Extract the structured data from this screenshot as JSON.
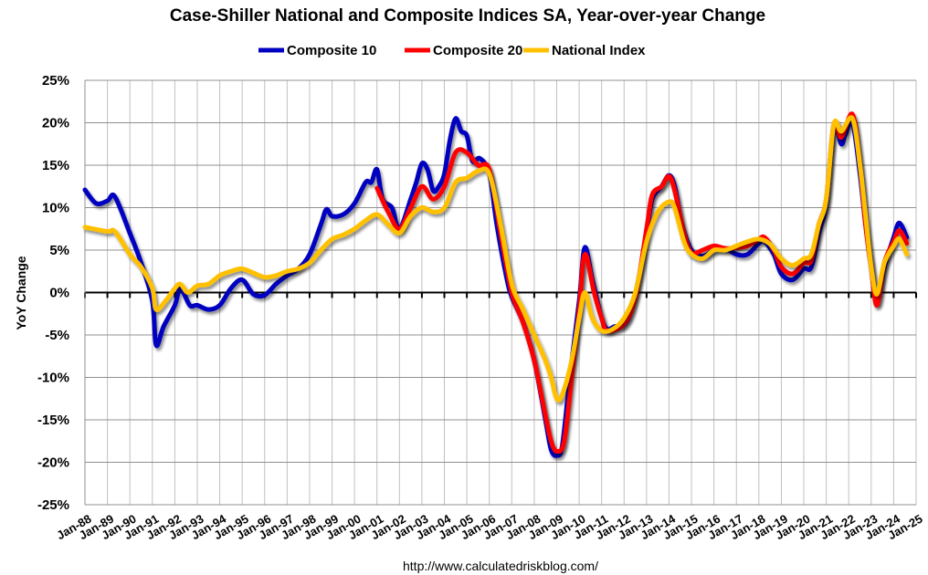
{
  "chart_data": {
    "type": "line",
    "title": "Case-Shiller National and Composite Indices SA, Year-over-year Change",
    "ylabel": "YoY Change",
    "xlabel": "",
    "ylim": [
      -25,
      25
    ],
    "y_ticks": [
      "25%",
      "20%",
      "15%",
      "10%",
      "5%",
      "0%",
      "-5%",
      "-10%",
      "-15%",
      "-20%",
      "-25%"
    ],
    "x_ticks": [
      "Jan-88",
      "Jan-89",
      "Jan-90",
      "Jan-91",
      "Jan-92",
      "Jan-93",
      "Jan-94",
      "Jan-95",
      "Jan-96",
      "Jan-97",
      "Jan-98",
      "Jan-99",
      "Jan-00",
      "Jan-01",
      "Jan-02",
      "Jan-03",
      "Jan-04",
      "Jan-05",
      "Jan-06",
      "Jan-07",
      "Jan-08",
      "Jan-09",
      "Jan-10",
      "Jan-11",
      "Jan-12",
      "Jan-13",
      "Jan-14",
      "Jan-15",
      "Jan-16",
      "Jan-17",
      "Jan-18",
      "Jan-19",
      "Jan-20",
      "Jan-21",
      "Jan-22",
      "Jan-23",
      "Jan-24",
      "Jan-25"
    ],
    "xlim": [
      "1988-01",
      "2025-01"
    ],
    "grid": true,
    "legend_position": "top",
    "series": [
      {
        "name": "Composite 10",
        "color": "#0000C0",
        "points": [
          [
            "1988-01",
            12.1
          ],
          [
            "1988-07",
            10.5
          ],
          [
            "1989-01",
            10.8
          ],
          [
            "1989-05",
            11.3
          ],
          [
            "1990-01",
            7
          ],
          [
            "1990-07",
            3.5
          ],
          [
            "1991-01",
            -1
          ],
          [
            "1991-03",
            -6.2
          ],
          [
            "1991-07",
            -4
          ],
          [
            "1992-01",
            -1.5
          ],
          [
            "1992-04",
            0.5
          ],
          [
            "1992-09",
            -1.5
          ],
          [
            "1993-01",
            -1.5
          ],
          [
            "1993-07",
            -2
          ],
          [
            "1994-01",
            -1.5
          ],
          [
            "1994-07",
            0.5
          ],
          [
            "1995-01",
            1.5
          ],
          [
            "1995-07",
            -0.2
          ],
          [
            "1996-01",
            -0.3
          ],
          [
            "1996-07",
            1
          ],
          [
            "1997-01",
            2
          ],
          [
            "1997-07",
            2.8
          ],
          [
            "1998-01",
            4.5
          ],
          [
            "1998-07",
            8
          ],
          [
            "1998-10",
            9.8
          ],
          [
            "1999-01",
            9
          ],
          [
            "1999-07",
            9.2
          ],
          [
            "2000-01",
            10.5
          ],
          [
            "2000-07",
            13
          ],
          [
            "2000-10",
            13
          ],
          [
            "2001-01",
            14.5
          ],
          [
            "2001-04",
            11
          ],
          [
            "2001-09",
            10
          ],
          [
            "2002-01",
            7.5
          ],
          [
            "2002-07",
            11
          ],
          [
            "2002-10",
            13
          ],
          [
            "2003-01",
            15.2
          ],
          [
            "2003-04",
            14.5
          ],
          [
            "2003-07",
            12
          ],
          [
            "2003-10",
            12.5
          ],
          [
            "2004-01",
            14
          ],
          [
            "2004-04",
            18
          ],
          [
            "2004-07",
            20.5
          ],
          [
            "2004-10",
            19
          ],
          [
            "2005-01",
            18.5
          ],
          [
            "2005-04",
            15.5
          ],
          [
            "2005-08",
            15.8
          ],
          [
            "2006-01",
            14
          ],
          [
            "2006-05",
            8
          ],
          [
            "2006-10",
            2
          ],
          [
            "2007-01",
            -0.5
          ],
          [
            "2007-07",
            -3.5
          ],
          [
            "2008-01",
            -8
          ],
          [
            "2008-07",
            -15
          ],
          [
            "2008-10",
            -18.5
          ],
          [
            "2009-01",
            -19.2
          ],
          [
            "2009-04",
            -18
          ],
          [
            "2009-08",
            -10
          ],
          [
            "2010-01",
            -1
          ],
          [
            "2010-04",
            5.3
          ],
          [
            "2010-08",
            1.5
          ],
          [
            "2011-01",
            -3
          ],
          [
            "2011-04",
            -4.3
          ],
          [
            "2011-08",
            -4
          ],
          [
            "2012-01",
            -3.8
          ],
          [
            "2012-05",
            -2
          ],
          [
            "2012-10",
            3
          ],
          [
            "2013-01",
            7
          ],
          [
            "2013-04",
            11
          ],
          [
            "2013-09",
            12.5
          ],
          [
            "2014-01",
            13.8
          ],
          [
            "2014-04",
            12.5
          ],
          [
            "2014-08",
            8
          ],
          [
            "2015-01",
            5
          ],
          [
            "2015-07",
            4.3
          ],
          [
            "2016-01",
            5
          ],
          [
            "2016-07",
            5.2
          ],
          [
            "2017-01",
            4.5
          ],
          [
            "2017-07",
            4.5
          ],
          [
            "2018-01",
            5.8
          ],
          [
            "2018-04",
            6
          ],
          [
            "2018-09",
            4.5
          ],
          [
            "2019-01",
            2.2
          ],
          [
            "2019-07",
            1.5
          ],
          [
            "2020-01",
            2.8
          ],
          [
            "2020-05",
            3
          ],
          [
            "2020-09",
            7
          ],
          [
            "2021-01",
            10.5
          ],
          [
            "2021-05",
            19.5
          ],
          [
            "2021-09",
            17.5
          ],
          [
            "2021-11",
            18.5
          ],
          [
            "2022-03",
            20
          ],
          [
            "2022-07",
            14
          ],
          [
            "2022-10",
            8
          ],
          [
            "2023-01",
            3
          ],
          [
            "2023-04",
            -1.3
          ],
          [
            "2023-08",
            3
          ],
          [
            "2024-01",
            6.5
          ],
          [
            "2024-04",
            8.2
          ],
          [
            "2024-08",
            6.5
          ]
        ]
      },
      {
        "name": "Composite 20",
        "color": "#FF0000",
        "points": [
          [
            "2001-01",
            12.3
          ],
          [
            "2001-07",
            9.5
          ],
          [
            "2002-01",
            7.5
          ],
          [
            "2002-07",
            10
          ],
          [
            "2003-01",
            12.5
          ],
          [
            "2003-07",
            11
          ],
          [
            "2004-01",
            12.5
          ],
          [
            "2004-07",
            16.5
          ],
          [
            "2005-01",
            16.5
          ],
          [
            "2005-07",
            15
          ],
          [
            "2006-01",
            14.5
          ],
          [
            "2006-07",
            7
          ],
          [
            "2007-01",
            0
          ],
          [
            "2007-07",
            -3.5
          ],
          [
            "2008-01",
            -8
          ],
          [
            "2008-07",
            -14.5
          ],
          [
            "2008-10",
            -17.5
          ],
          [
            "2009-01",
            -18.7
          ],
          [
            "2009-05",
            -17.5
          ],
          [
            "2009-09",
            -10
          ],
          [
            "2010-01",
            -2
          ],
          [
            "2010-04",
            4.5
          ],
          [
            "2010-09",
            0
          ],
          [
            "2011-01",
            -3
          ],
          [
            "2011-04",
            -4.5
          ],
          [
            "2012-01",
            -3.7
          ],
          [
            "2012-07",
            -0.5
          ],
          [
            "2013-01",
            7.5
          ],
          [
            "2013-04",
            11.5
          ],
          [
            "2013-09",
            12.5
          ],
          [
            "2014-01",
            13.7
          ],
          [
            "2014-04",
            12
          ],
          [
            "2014-09",
            7
          ],
          [
            "2015-01",
            4.7
          ],
          [
            "2015-07",
            5
          ],
          [
            "2016-01",
            5.5
          ],
          [
            "2016-07",
            5.2
          ],
          [
            "2017-01",
            5.3
          ],
          [
            "2017-07",
            5.5
          ],
          [
            "2018-01",
            6.3
          ],
          [
            "2018-04",
            6.5
          ],
          [
            "2018-09",
            5
          ],
          [
            "2019-01",
            3
          ],
          [
            "2019-07",
            2.2
          ],
          [
            "2020-01",
            3.5
          ],
          [
            "2020-05",
            3.8
          ],
          [
            "2020-09",
            8
          ],
          [
            "2021-01",
            11
          ],
          [
            "2021-05",
            19.8
          ],
          [
            "2021-09",
            18.3
          ],
          [
            "2022-03",
            21
          ],
          [
            "2022-07",
            15
          ],
          [
            "2022-10",
            8
          ],
          [
            "2023-01",
            3
          ],
          [
            "2023-04",
            -1.5
          ],
          [
            "2023-08",
            3.5
          ],
          [
            "2024-01",
            6
          ],
          [
            "2024-04",
            7.3
          ],
          [
            "2024-08",
            5.8
          ]
        ]
      },
      {
        "name": "National Index",
        "color": "#FFC000",
        "points": [
          [
            "1988-01",
            7.7
          ],
          [
            "1989-01",
            7.2
          ],
          [
            "1989-05",
            7.2
          ],
          [
            "1990-01",
            4.5
          ],
          [
            "1990-07",
            3
          ],
          [
            "1991-01",
            0.5
          ],
          [
            "1991-03",
            -2
          ],
          [
            "1991-08",
            -1
          ],
          [
            "1992-01",
            0.5
          ],
          [
            "1992-04",
            1
          ],
          [
            "1992-08",
            0
          ],
          [
            "1993-01",
            0.8
          ],
          [
            "1993-07",
            1
          ],
          [
            "1994-01",
            2
          ],
          [
            "1994-07",
            2.5
          ],
          [
            "1995-01",
            2.8
          ],
          [
            "1995-07",
            2.3
          ],
          [
            "1996-01",
            1.8
          ],
          [
            "1996-07",
            2
          ],
          [
            "1997-01",
            2.5
          ],
          [
            "1997-07",
            2.8
          ],
          [
            "1998-01",
            3.5
          ],
          [
            "1998-07",
            5
          ],
          [
            "1999-01",
            6.3
          ],
          [
            "1999-07",
            6.8
          ],
          [
            "2000-01",
            7.5
          ],
          [
            "2000-07",
            8.5
          ],
          [
            "2001-01",
            9.2
          ],
          [
            "2001-07",
            8
          ],
          [
            "2002-01",
            7
          ],
          [
            "2002-07",
            9
          ],
          [
            "2003-01",
            10
          ],
          [
            "2003-07",
            9.5
          ],
          [
            "2004-01",
            10
          ],
          [
            "2004-07",
            13
          ],
          [
            "2005-01",
            13.5
          ],
          [
            "2005-07",
            14.3
          ],
          [
            "2006-01",
            14
          ],
          [
            "2006-07",
            8
          ],
          [
            "2007-01",
            1
          ],
          [
            "2007-07",
            -2
          ],
          [
            "2008-01",
            -5
          ],
          [
            "2008-07",
            -8
          ],
          [
            "2008-10",
            -10
          ],
          [
            "2009-01",
            -12.5
          ],
          [
            "2009-04",
            -12
          ],
          [
            "2009-09",
            -8
          ],
          [
            "2010-01",
            -3
          ],
          [
            "2010-04",
            0
          ],
          [
            "2010-08",
            -3
          ],
          [
            "2011-01",
            -4.5
          ],
          [
            "2011-07",
            -4.3
          ],
          [
            "2012-01",
            -3
          ],
          [
            "2012-07",
            0
          ],
          [
            "2013-01",
            6
          ],
          [
            "2013-07",
            9.5
          ],
          [
            "2014-01",
            10.7
          ],
          [
            "2014-04",
            10
          ],
          [
            "2014-09",
            6
          ],
          [
            "2015-01",
            4.5
          ],
          [
            "2015-07",
            4
          ],
          [
            "2016-01",
            5
          ],
          [
            "2016-07",
            5
          ],
          [
            "2017-01",
            5.5
          ],
          [
            "2017-07",
            6
          ],
          [
            "2018-01",
            6.3
          ],
          [
            "2018-07",
            5.7
          ],
          [
            "2019-01",
            4
          ],
          [
            "2019-07",
            3.2
          ],
          [
            "2020-01",
            4
          ],
          [
            "2020-05",
            4.5
          ],
          [
            "2020-09",
            8
          ],
          [
            "2021-01",
            11
          ],
          [
            "2021-05",
            19.8
          ],
          [
            "2021-09",
            19
          ],
          [
            "2022-03",
            20.5
          ],
          [
            "2022-07",
            15
          ],
          [
            "2022-10",
            9
          ],
          [
            "2023-01",
            3
          ],
          [
            "2023-04",
            -0.2
          ],
          [
            "2023-08",
            3.5
          ],
          [
            "2024-01",
            5.5
          ],
          [
            "2024-04",
            6.3
          ],
          [
            "2024-08",
            4.5
          ]
        ]
      }
    ]
  },
  "footer": {
    "url": "http://www.calculatedriskblog.com/"
  }
}
